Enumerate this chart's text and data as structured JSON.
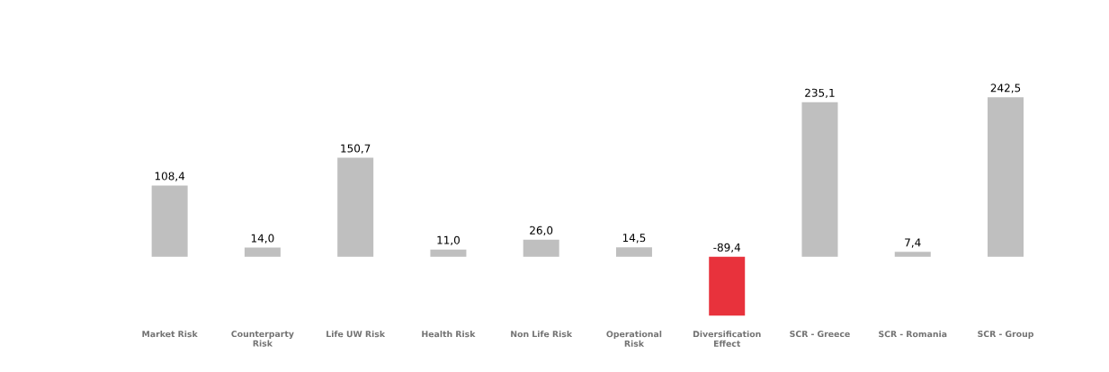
{
  "chart_data": {
    "type": "bar",
    "categories": [
      "Market Risk",
      "Counterparty Risk",
      "Life UW Risk",
      "Health Risk",
      "Non Life Risk",
      "Operational Risk",
      "Diversification Effect",
      "SCR - Greece",
      "SCR - Romania",
      "SCR - Group"
    ],
    "values": [
      108.4,
      14.0,
      150.7,
      11.0,
      26.0,
      14.5,
      -89.4,
      235.1,
      7.4,
      242.5
    ],
    "value_labels": [
      "108,4",
      "14,0",
      "150,7",
      "11,0",
      "26,0",
      "14,5",
      "-89,4",
      "235,1",
      "7,4",
      "242,5"
    ],
    "colors": [
      "#bfbfbf",
      "#bfbfbf",
      "#bfbfbf",
      "#bfbfbf",
      "#bfbfbf",
      "#bfbfbf",
      "#e8323c",
      "#bfbfbf",
      "#bfbfbf",
      "#bfbfbf"
    ]
  }
}
